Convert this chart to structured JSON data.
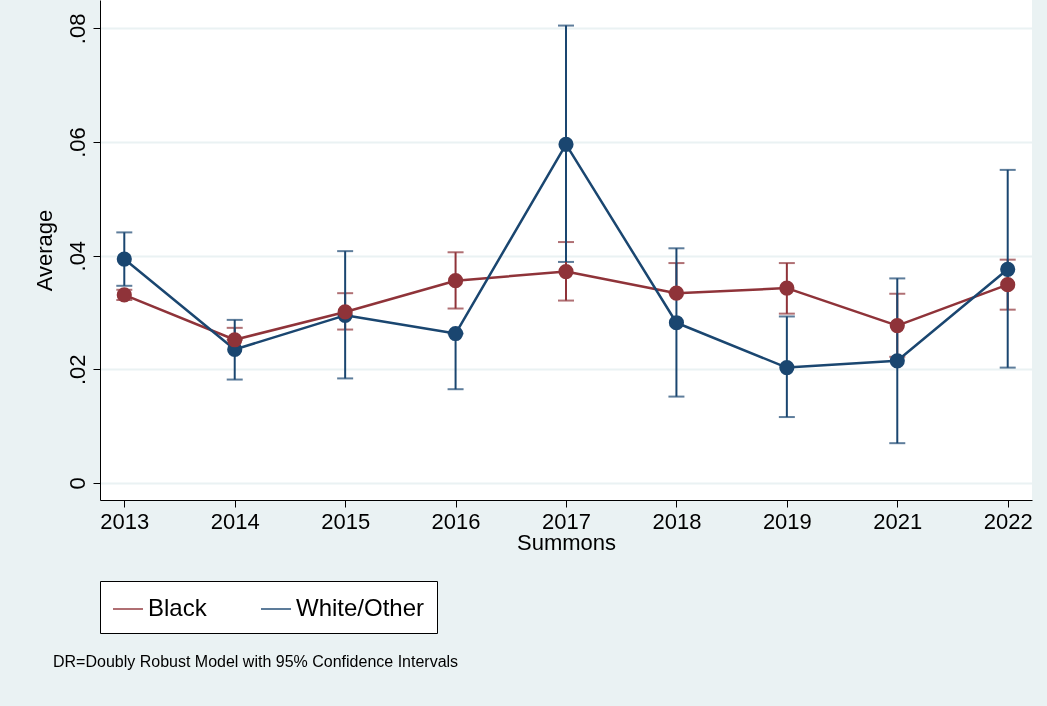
{
  "chart_data": {
    "type": "line",
    "xlabel": "Summons",
    "ylabel": "Average",
    "categories": [
      "2013",
      "2014",
      "2015",
      "2016",
      "2017",
      "2018",
      "2019",
      "2021",
      "2022"
    ],
    "series": [
      {
        "name": "Black",
        "color": "#8f3339",
        "values": [
          0.0331,
          0.0252,
          0.0301,
          0.0356,
          0.0372,
          0.0334,
          0.0343,
          0.0277,
          0.0349
        ],
        "errors": [
          [
            0.0322,
            0.034
          ],
          [
            0.0252,
            0.0273
          ],
          [
            0.027,
            0.0334
          ],
          [
            0.0307,
            0.0406
          ],
          [
            0.0321,
            0.0424
          ],
          [
            0.0334,
            0.0387
          ],
          [
            0.0298,
            0.0387
          ],
          [
            0.0222,
            0.0333
          ],
          [
            0.0305,
            0.0393
          ]
        ]
      },
      {
        "name": "White/Other",
        "color": "#1a4670",
        "values": [
          0.0394,
          0.0235,
          0.0295,
          0.0263,
          0.0596,
          0.0282,
          0.0203,
          0.0215,
          0.0376
        ],
        "errors": [
          [
            0.0347,
            0.0441
          ],
          [
            0.0182,
            0.0287
          ],
          [
            0.0184,
            0.0408
          ],
          [
            0.0165,
            0.0263
          ],
          [
            0.0389,
            0.0805
          ],
          [
            0.0152,
            0.0413
          ],
          [
            0.0116,
            0.0293
          ],
          [
            0.007,
            0.036
          ],
          [
            0.0203,
            0.0551
          ]
        ]
      }
    ],
    "ylim": [
      -0.003,
      0.085
    ],
    "yticks": [
      0,
      {
        "value": 0.02,
        "label": ".02"
      },
      {
        "value": 0.04,
        "label": ".04"
      },
      {
        "value": 0.06,
        "label": ".06"
      },
      {
        "value": 0.08,
        "label": ".08"
      }
    ],
    "grid": "y",
    "legend": "bottom",
    "marker": "circle",
    "line_style": "solid",
    "annotations": [
      "DR=Doubly Robust Model with 95% Confidence Intervals"
    ]
  }
}
